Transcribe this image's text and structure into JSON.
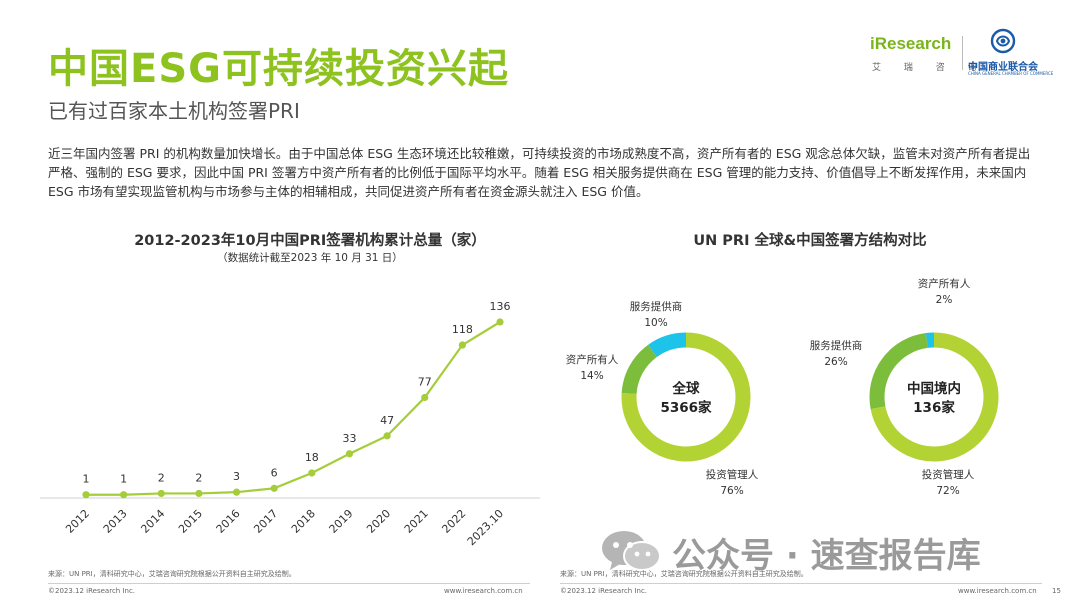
{
  "header": {
    "title": "中国ESG可持续投资兴起",
    "subtitle": "已有过百家本土机构签署PRI",
    "logo_iresearch": "iResearch",
    "logo_iresearch_sub": "艾 瑞 咨 询",
    "logo_partner": "中国商业联合会",
    "logo_partner_en": "CHINA GENERAL CHAMBER OF COMMERCE"
  },
  "intro": "近三年国内签署 PRI 的机构数量加快增长。由于中国总体 ESG 生态环境还比较稚嫩，可持续投资的市场成熟度不高，资产所有者的 ESG 观念总体欠缺，监管未对资产所有者提出严格、强制的 ESG 要求，因此中国 PRI 签署方中资产所有者的比例低于国际平均水平。随着 ESG 相关服务提供商在 ESG 管理的能力支持、价值倡导上不断发挥作用，未来国内 ESG 市场有望实现监管机构与市场参与主体的相辅相成，共同促进资产所有者在资金源头就注入 ESG 价值。",
  "colors": {
    "brand_green": "#8dc21f",
    "investment_manager": "#b3d334",
    "asset_owner": "#7cbd3c",
    "service_provider": "#1dc3e8"
  },
  "chart_data": [
    {
      "type": "line",
      "title": "2012-2023年10月中国PRI签署机构累计总量（家）",
      "subtitle": "（数据统计截至2023 年 10 月 31 日）",
      "categories": [
        "2012",
        "2013",
        "2014",
        "2015",
        "2016",
        "2017",
        "2018",
        "2019",
        "2020",
        "2021",
        "2022",
        "2023.10"
      ],
      "values": [
        1,
        1,
        2,
        2,
        3,
        6,
        18,
        33,
        47,
        77,
        118,
        136
      ],
      "ylim": [
        0,
        136
      ],
      "grid": false,
      "color": "#a5cd39"
    },
    {
      "type": "pie",
      "title": "UN PRI 全球&中国签署方结构对比",
      "charts": [
        {
          "center_label": "全球",
          "center_value": "5366家",
          "slices": [
            {
              "label": "投资管理人",
              "value": 76,
              "display": "76%",
              "color": "#b3d334"
            },
            {
              "label": "资产所有人",
              "value": 14,
              "display": "14%",
              "color": "#7cbd3c"
            },
            {
              "label": "服务提供商",
              "value": 10,
              "display": "10%",
              "color": "#1dc3e8"
            }
          ]
        },
        {
          "center_label": "中国境内",
          "center_value": "136家",
          "slices": [
            {
              "label": "投资管理人",
              "value": 72,
              "display": "72%",
              "color": "#b3d334"
            },
            {
              "label": "服务提供商",
              "value": 26,
              "display": "26%",
              "color": "#7cbd3c"
            },
            {
              "label": "资产所有人",
              "value": 2,
              "display": "2%",
              "color": "#1dc3e8"
            }
          ]
        }
      ]
    }
  ],
  "footer": {
    "source_left": "来源：UN PRI，清科研究中心，艾瑞咨询研究院根据公开资料自主研究及绘制。",
    "source_right": "来源：UN PRI，清科研究中心，艾瑞咨询研究院根据公开资料自主研究及绘制。",
    "copyright_left": "©2023.12 iResearch Inc.",
    "url_left": "www.iresearch.com.cn",
    "copyright_right": "©2023.12 iResearch Inc.",
    "url_right": "www.iresearch.com.cn",
    "page_number": "15"
  },
  "watermark": {
    "text": "公众号 · 速查报告库"
  }
}
